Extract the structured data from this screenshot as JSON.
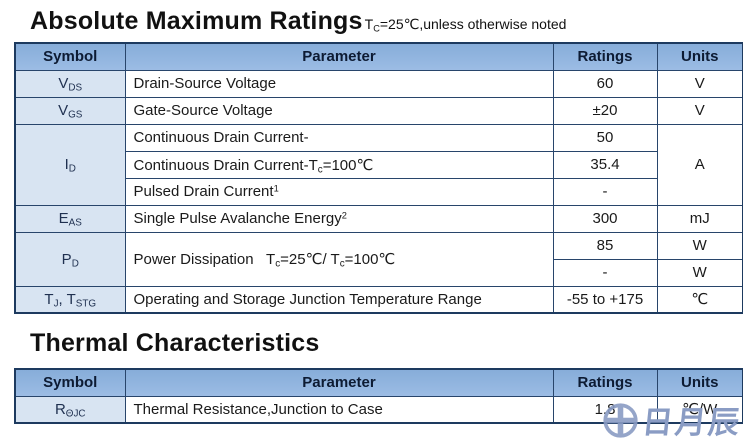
{
  "colors": {
    "header_bg": "#8fb3de",
    "symbol_cell_bg": "#d8e4f2",
    "table_border": "#1d3a5f",
    "watermark": "#8a9cc4"
  },
  "amr": {
    "title": "Absolute Maximum Ratings",
    "subtitle": [
      {
        "t": "T"
      },
      {
        "sub": "C"
      },
      {
        "t": "=25℃,unless otherwise noted"
      }
    ],
    "header": {
      "symbol": "Symbol",
      "parameter": "Parameter",
      "ratings": "Ratings",
      "units": "Units"
    },
    "rows": {
      "vds": {
        "symbol": [
          {
            "t": "V"
          },
          {
            "sub": "DS"
          }
        ],
        "param": [
          {
            "t": "Drain-Source Voltage"
          }
        ],
        "rating": "60",
        "unit": "V"
      },
      "vgs": {
        "symbol": [
          {
            "t": "V"
          },
          {
            "sub": "GS"
          }
        ],
        "param": [
          {
            "t": "Gate-Source Voltage"
          }
        ],
        "rating": "±20",
        "unit": "V"
      },
      "id": {
        "symbol": [
          {
            "t": "I"
          },
          {
            "sub": "D"
          }
        ],
        "param1": [
          {
            "t": "Continuous Drain Current-"
          }
        ],
        "rating1": "50",
        "param2": [
          {
            "t": "Continuous Drain Current-T"
          },
          {
            "sub": "c"
          },
          {
            "t": "=100℃"
          }
        ],
        "rating2": "35.4",
        "param3": [
          {
            "t": "Pulsed Drain Current"
          },
          {
            "sup": "1"
          }
        ],
        "rating3": "-",
        "unit": "A"
      },
      "eas": {
        "symbol": [
          {
            "t": "E"
          },
          {
            "sub": "AS"
          }
        ],
        "param": [
          {
            "t": "Single Pulse Avalanche Energy"
          },
          {
            "sup": "2"
          }
        ],
        "rating": "300",
        "unit": "mJ"
      },
      "pd": {
        "symbol": [
          {
            "t": "P"
          },
          {
            "sub": "D"
          }
        ],
        "param": [
          {
            "t": "Power Dissipation   T"
          },
          {
            "sub": "c"
          },
          {
            "t": "=25℃/ T"
          },
          {
            "sub": "c"
          },
          {
            "t": "=100℃"
          }
        ],
        "rating1": "85",
        "unit1": "W",
        "rating2": "-",
        "unit2": "W"
      },
      "tj": {
        "symbol": [
          {
            "t": "T"
          },
          {
            "sub": "J"
          },
          {
            "t": ", T"
          },
          {
            "sub": "STG"
          }
        ],
        "param": [
          {
            "t": "Operating and Storage Junction Temperature Range"
          }
        ],
        "rating": "-55 to +175",
        "unit": "℃"
      }
    }
  },
  "thermal": {
    "title": "Thermal Characteristics",
    "header": {
      "symbol": "Symbol",
      "parameter": "Parameter",
      "ratings": "Ratings",
      "units": "Units"
    },
    "rows": {
      "rthjc": {
        "symbol": [
          {
            "t": "R"
          },
          {
            "sub": "ΘJC"
          }
        ],
        "param": [
          {
            "t": "Thermal Resistance,Junction to Case"
          }
        ],
        "rating": "1.8",
        "unit": "℃/W"
      }
    }
  },
  "watermark": {
    "icon": "circle-cross-logo",
    "text": "日月辰"
  }
}
